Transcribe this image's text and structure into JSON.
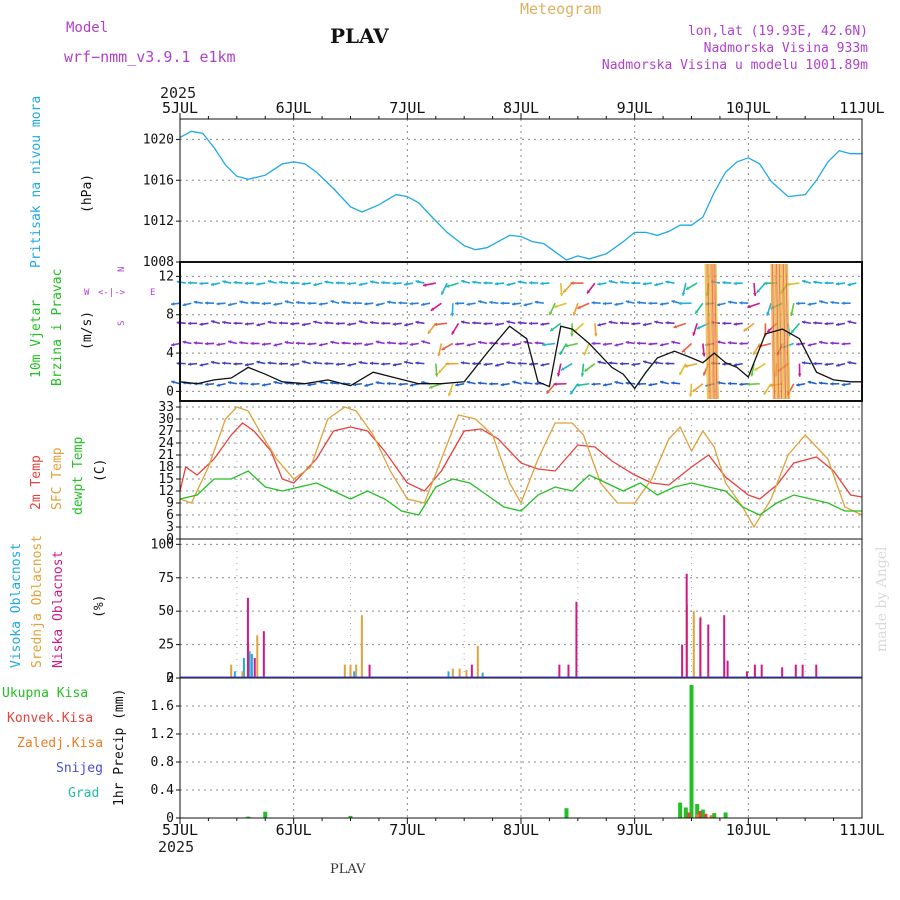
{
  "header": {
    "model_label": "Model",
    "model_name": "wrf−nmm_v3.9.1 e1km",
    "station": "PLAV",
    "meteogram": "Meteogram",
    "lonlat": "lon,lat (19.93E, 42.6N)",
    "elevation": "Nadmorska Visina 933m",
    "model_elevation": "Nadmorska Visina u modelu 1001.89m",
    "year_top": "2025",
    "year_bottom": "2025",
    "footer_station": "PLAV",
    "credit": "made by Angel"
  },
  "colors": {
    "pressure": "#1fa9e6",
    "temp2m": "#e8413c",
    "sfc": "#e0a23a",
    "dewpt": "#23c023",
    "high_cloud": "#1fa9e6",
    "mid_cloud": "#e0a23a",
    "low_cloud": "#d0188a",
    "rain_total": "#23c023",
    "rain_conv": "#e8413c",
    "rain_frozen": "#ee7b22",
    "snow": "#4a4ae0",
    "hail": "#23c0a0",
    "purple_text": "#b040d0",
    "gold_text": "#e0b060"
  },
  "panel_labels": {
    "pressure": {
      "title": "Pritisak na nivou mora",
      "unit": "(hPa)"
    },
    "wind": {
      "title1": "10m Vjetar",
      "title2": "Brzina i Pravac",
      "unit": "(m/s)",
      "compass_n": "N",
      "compass_s": "S",
      "compass_w": "W",
      "compass_e": "E"
    },
    "temp": {
      "t2m": "2m Temp",
      "sfc": "SFC Temp",
      "dew": "dewpt Temp",
      "unit": "(C)"
    },
    "cloud": {
      "high": "Visoka Oblacnost",
      "mid": "Srednja Oblacnost",
      "low": "Niska Oblacnost",
      "unit": "(%)"
    },
    "precip": {
      "total": "Ukupna Kisa",
      "conv": "Konvek.Kisa",
      "frozen": "Zaledj.Kisa",
      "snow": "Snijeg",
      "hail": "Grad",
      "unit": "1hr Precip (mm)"
    }
  },
  "chart_data": [
    {
      "type": "line",
      "panel": "pressure",
      "x_unit": "days since 5JUL 00UTC",
      "x_ticks": [
        "5JUL",
        "6JUL",
        "7JUL",
        "8JUL",
        "9JUL",
        "10JUL",
        "11JUL"
      ],
      "ylim": [
        1008,
        1022
      ],
      "y_ticks": [
        1008,
        1012,
        1016,
        1020
      ],
      "series": [
        {
          "name": "Pritisak na nivou mora",
          "x": [
            0,
            0.1,
            0.2,
            0.3,
            0.4,
            0.5,
            0.6,
            0.75,
            0.9,
            1.0,
            1.1,
            1.2,
            1.35,
            1.5,
            1.6,
            1.75,
            1.9,
            2.0,
            2.1,
            2.2,
            2.35,
            2.5,
            2.6,
            2.7,
            2.8,
            2.9,
            3.0,
            3.1,
            3.2,
            3.3,
            3.4,
            3.5,
            3.6,
            3.75,
            3.9,
            4.0,
            4.1,
            4.2,
            4.3,
            4.4,
            4.5,
            4.6,
            4.7,
            4.8,
            4.9,
            5.0,
            5.1,
            5.2,
            5.35,
            5.5,
            5.6,
            5.7,
            5.8,
            5.9,
            6.0
          ],
          "values": [
            1020.2,
            1020.8,
            1020.6,
            1019.2,
            1017.5,
            1016.4,
            1016.1,
            1016.5,
            1017.6,
            1017.8,
            1017.6,
            1016.8,
            1015.2,
            1013.4,
            1012.9,
            1013.6,
            1014.6,
            1014.4,
            1013.8,
            1012.6,
            1010.9,
            1009.6,
            1009.2,
            1009.4,
            1010.0,
            1010.6,
            1010.5,
            1010.0,
            1009.8,
            1009.0,
            1008.2,
            1008.6,
            1008.3,
            1008.8,
            1010.0,
            1010.9,
            1010.9,
            1010.6,
            1011.0,
            1011.6,
            1011.6,
            1012.4,
            1014.8,
            1016.8,
            1017.8,
            1018.2,
            1017.6,
            1015.9,
            1014.4,
            1014.6,
            1016.0,
            1017.8,
            1018.9,
            1018.6,
            1018.6
          ]
        }
      ]
    },
    {
      "type": "line",
      "panel": "wind",
      "title": "10m Vjetar Brzina i Pravac",
      "ylim": [
        -1,
        13.5
      ],
      "y_ticks": [
        0,
        4,
        8,
        12
      ],
      "series": [
        {
          "name": "wind speed",
          "x": [
            0,
            0.15,
            0.3,
            0.45,
            0.6,
            0.75,
            0.9,
            1.1,
            1.3,
            1.5,
            1.7,
            1.9,
            2.1,
            2.3,
            2.5,
            2.7,
            2.9,
            3.05,
            3.15,
            3.25,
            3.35,
            3.45,
            3.6,
            3.8,
            3.9,
            4.0,
            4.1,
            4.2,
            4.35,
            4.5,
            4.6,
            4.7,
            4.8,
            4.9,
            5.0,
            5.15,
            5.3,
            5.45,
            5.6,
            5.75,
            5.9,
            6.0
          ],
          "values": [
            1.0,
            0.8,
            1.2,
            1.4,
            2.5,
            1.8,
            1.0,
            0.8,
            1.2,
            0.6,
            2.0,
            1.4,
            0.8,
            0.8,
            1.0,
            4.0,
            6.8,
            5.5,
            1.0,
            0.5,
            6.8,
            6.5,
            5.0,
            2.5,
            1.8,
            0.3,
            2.0,
            3.5,
            4.2,
            3.5,
            3.0,
            4.0,
            3.0,
            2.5,
            1.5,
            6.0,
            6.5,
            5.5,
            2.0,
            1.2,
            1.0,
            1.0
          ]
        }
      ]
    },
    {
      "type": "line",
      "panel": "temp",
      "ylim": [
        0,
        34
      ],
      "y_ticks": [
        0,
        3,
        6,
        9,
        12,
        15,
        18,
        21,
        24,
        27,
        30,
        33
      ],
      "series": [
        {
          "name": "2m Temp",
          "x": [
            0,
            0.05,
            0.15,
            0.3,
            0.45,
            0.55,
            0.65,
            0.8,
            0.9,
            1.0,
            1.2,
            1.35,
            1.5,
            1.65,
            1.8,
            2.0,
            2.15,
            2.3,
            2.5,
            2.65,
            2.8,
            3.0,
            3.15,
            3.3,
            3.5,
            3.65,
            3.8,
            4.0,
            4.15,
            4.3,
            4.5,
            4.65,
            4.8,
            5.0,
            5.1,
            5.25,
            5.4,
            5.6,
            5.75,
            5.9,
            6.0
          ],
          "values": [
            12,
            18,
            16,
            20,
            26,
            29,
            27,
            22,
            15,
            14,
            20,
            27,
            28,
            27,
            22,
            14,
            12,
            17,
            27,
            27.5,
            25,
            19,
            17.5,
            17,
            23.5,
            23,
            19.5,
            16,
            14,
            13.5,
            18,
            21,
            15.5,
            11,
            10,
            13.5,
            19,
            20.5,
            17,
            11,
            10.5
          ]
        },
        {
          "name": "SFC Temp",
          "x": [
            0,
            0.1,
            0.25,
            0.4,
            0.5,
            0.6,
            0.7,
            0.85,
            1.0,
            1.15,
            1.3,
            1.45,
            1.55,
            1.7,
            1.85,
            2.0,
            2.15,
            2.3,
            2.45,
            2.6,
            2.75,
            2.9,
            3.0,
            3.15,
            3.3,
            3.45,
            3.55,
            3.7,
            3.85,
            4.0,
            4.15,
            4.3,
            4.4,
            4.5,
            4.6,
            4.7,
            4.8,
            4.95,
            5.05,
            5.2,
            5.35,
            5.5,
            5.7,
            5.85,
            6.0
          ],
          "values": [
            10,
            9,
            18,
            30,
            33,
            32,
            27,
            20,
            15,
            18,
            30,
            33,
            32,
            26,
            17,
            10,
            9,
            20,
            31,
            30,
            26,
            14,
            9,
            20,
            29,
            29,
            26,
            14,
            9,
            9,
            15,
            25,
            28,
            22,
            27,
            23,
            14,
            8,
            3,
            10,
            21,
            26,
            20,
            8,
            6
          ]
        },
        {
          "name": "dewpt Temp",
          "x": [
            0,
            0.15,
            0.3,
            0.45,
            0.6,
            0.75,
            0.9,
            1.05,
            1.2,
            1.35,
            1.5,
            1.65,
            1.8,
            1.95,
            2.1,
            2.25,
            2.4,
            2.55,
            2.7,
            2.85,
            3.0,
            3.15,
            3.3,
            3.45,
            3.6,
            3.75,
            3.9,
            4.05,
            4.2,
            4.35,
            4.5,
            4.65,
            4.8,
            4.95,
            5.1,
            5.25,
            5.4,
            5.55,
            5.7,
            5.85,
            6.0
          ],
          "values": [
            10,
            11,
            15,
            15,
            17,
            13,
            12,
            13,
            14,
            12,
            10,
            12,
            10,
            7,
            6,
            13,
            15,
            14,
            11,
            8,
            7,
            11,
            13,
            12,
            16,
            14,
            12,
            14,
            11,
            13,
            14,
            13,
            12,
            8,
            6,
            9,
            11,
            10,
            9,
            7,
            7
          ]
        }
      ]
    },
    {
      "type": "bar",
      "panel": "cloud",
      "ylim": [
        0,
        100
      ],
      "y_ticks": [
        0,
        25,
        50,
        75,
        100
      ],
      "series": [
        {
          "name": "Visoka Oblacnost",
          "x": [
            0.5,
            0.58,
            0.63,
            0.65,
            1.55,
            2.38,
            2.68
          ],
          "values": [
            5,
            15,
            20,
            18,
            5,
            5,
            4
          ]
        },
        {
          "name": "Srednja Oblacnost",
          "x": [
            0.45,
            0.55,
            0.6,
            0.68,
            1.45,
            1.5,
            1.55,
            1.6,
            2.4,
            2.46,
            2.52,
            2.62,
            4.46,
            4.52,
            4.58
          ],
          "values": [
            10,
            5,
            25,
            32,
            10,
            10,
            10,
            47,
            7,
            7,
            6,
            24,
            55,
            50,
            46
          ]
        },
        {
          "name": "Niska Oblacnost",
          "x": [
            0.58,
            0.64,
            0.72,
            1.65,
            2.55,
            3.32,
            3.4,
            3.47,
            4.4,
            4.44,
            4.56,
            4.63,
            4.77,
            4.8,
            4.97,
            5.04,
            5.1,
            5.28,
            5.4,
            5.46,
            5.58
          ],
          "values": [
            60,
            15,
            35,
            10,
            10,
            10,
            10,
            57,
            25,
            78,
            45,
            40,
            47,
            13,
            5,
            10,
            10,
            8,
            10,
            10,
            10
          ]
        }
      ]
    },
    {
      "type": "bar",
      "panel": "precip",
      "ylim": [
        0,
        2
      ],
      "y_ticks": [
        0,
        0.4,
        0.8,
        1.2,
        1.6,
        2
      ],
      "series": [
        {
          "name": "Ukupna Kisa",
          "x": [
            0.6,
            0.75,
            1.5,
            3.4,
            4.4,
            4.45,
            4.5,
            4.55,
            4.6,
            4.7,
            4.8
          ],
          "values": [
            0.02,
            0.09,
            0.03,
            0.14,
            0.22,
            0.15,
            1.9,
            0.2,
            0.12,
            0.07,
            0.08
          ]
        },
        {
          "name": "Konvek.Kisa",
          "x": [
            4.45,
            4.55,
            4.6
          ],
          "values": [
            0.08,
            0.1,
            0.06
          ]
        },
        {
          "name": "Zaledj.Kisa",
          "x": [
            4.5,
            4.62
          ],
          "values": [
            0.05,
            0.04
          ]
        }
      ]
    }
  ]
}
